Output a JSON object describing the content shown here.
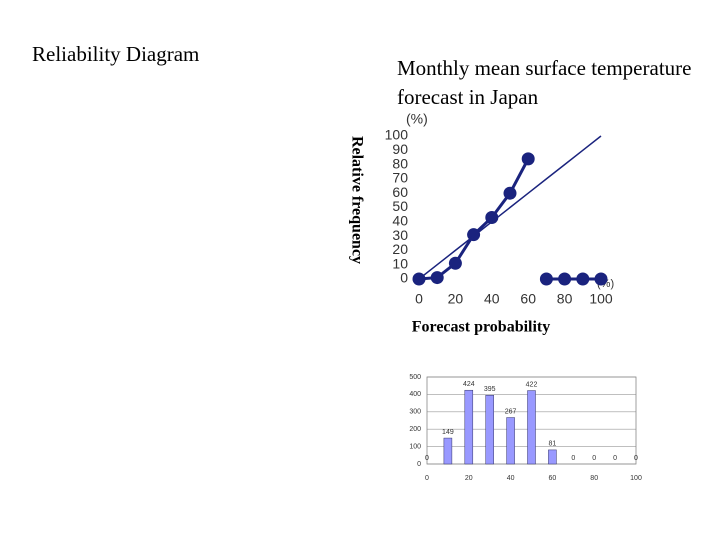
{
  "header": {
    "title": "Reliability Diagram"
  },
  "chart_data": [
    {
      "type": "line",
      "title": "Monthly mean surface temperature forecast in Japan",
      "x_label": "Forecast probability",
      "y_label": "Relative frequency",
      "x_unit": "(%)",
      "y_unit": "(%)",
      "x": [
        0,
        10,
        20,
        30,
        40,
        50,
        60,
        70,
        80,
        90,
        100
      ],
      "series": [
        {
          "color": "#1a237e",
          "marker": true,
          "values": [
            0,
            1,
            11,
            31,
            43,
            60,
            84,
            null,
            null,
            null,
            null
          ]
        },
        {
          "color": "#1a237e",
          "marker": true,
          "values": [
            null,
            null,
            null,
            null,
            null,
            null,
            null,
            0,
            0,
            0,
            0
          ]
        },
        {
          "color": "#1a237e",
          "marker": false,
          "values": [
            0,
            10,
            20,
            30,
            40,
            50,
            60,
            70,
            80,
            90,
            100
          ]
        }
      ],
      "xlim": [
        0,
        100
      ],
      "xticks": [
        0,
        20,
        40,
        60,
        80,
        100
      ],
      "ylim": [
        0,
        100
      ],
      "yticks": [
        0,
        10,
        20,
        30,
        40,
        50,
        60,
        70,
        80,
        90,
        100
      ],
      "grid": false
    },
    {
      "type": "bar",
      "x": [
        0,
        10,
        20,
        30,
        40,
        50,
        60,
        70,
        80,
        90,
        100
      ],
      "values": [
        0,
        149,
        424,
        395,
        267,
        422,
        81,
        0,
        0,
        0,
        0
      ],
      "color": "#9999ff",
      "xlim": [
        0,
        100
      ],
      "xticks": [
        0,
        20,
        40,
        60,
        80,
        100
      ],
      "ylim": [
        0,
        500
      ],
      "yticks": [
        0,
        100,
        200,
        300,
        400,
        500
      ],
      "grid": true
    }
  ]
}
